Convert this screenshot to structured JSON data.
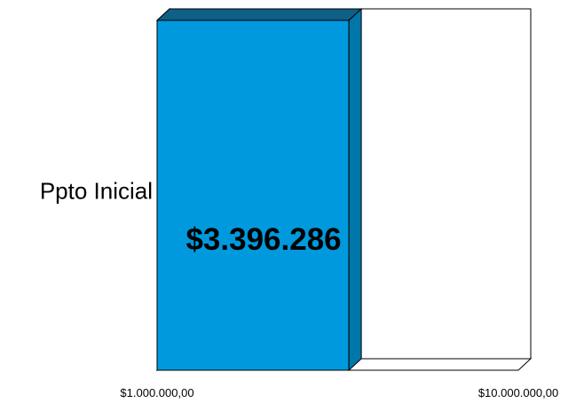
{
  "chart_data": {
    "type": "bar",
    "orientation": "horizontal",
    "three_d": true,
    "scale": "log",
    "categories": [
      "Ppto Inicial"
    ],
    "values": [
      3396286
    ],
    "data_labels": [
      "$3.396.286"
    ],
    "xlim": [
      1000000,
      10000000
    ],
    "x_tick_values": [
      1000000,
      10000000
    ],
    "x_tick_labels": [
      "$1.000.000,00",
      "$10.000.000,00"
    ],
    "title": "",
    "xlabel": "",
    "ylabel": "",
    "grid": false,
    "legend": "none",
    "colors": {
      "bar_front": "#0099DD",
      "bar_side": "#0077A8",
      "bar_top": "#0F5F86",
      "frame": "#000000",
      "wall": "#FFFFFF"
    }
  }
}
